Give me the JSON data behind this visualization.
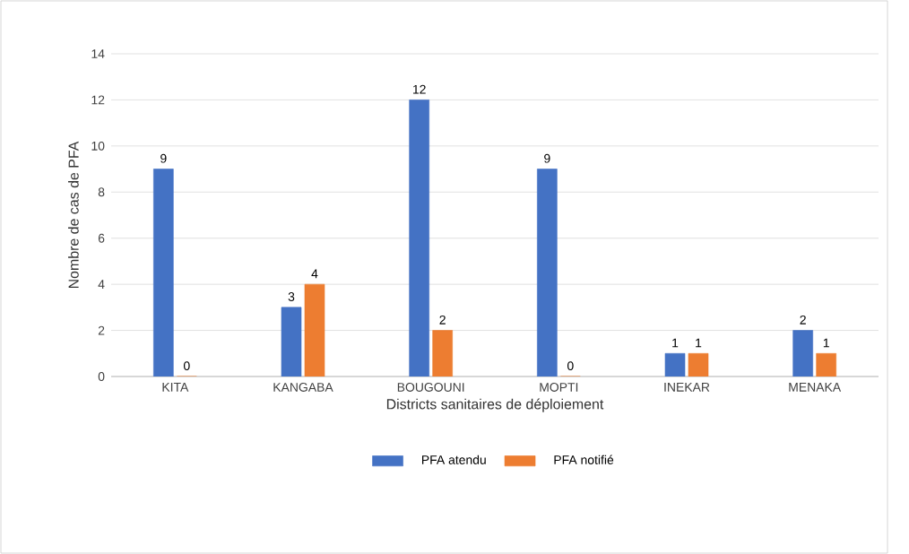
{
  "chart_data": {
    "type": "bar",
    "xlabel": "Districts sanitaires de déploiement",
    "ylabel": "Nombre de cas de PFA",
    "categories": [
      "KITA",
      "KANGABA",
      "BOUGOUNI",
      "MOPTI",
      "INEKAR",
      "MENAKA"
    ],
    "series": [
      {
        "name": "PFA atendu",
        "color": "#4472c4",
        "values": [
          9,
          3,
          12,
          9,
          1,
          2
        ]
      },
      {
        "name": "PFA notifié",
        "color": "#ed7d31",
        "values": [
          0,
          4,
          2,
          0,
          1,
          1
        ]
      }
    ],
    "ylim": [
      0,
      14
    ],
    "yticks": [
      0,
      2,
      4,
      6,
      8,
      10,
      12,
      14
    ],
    "grid": "y",
    "legend": "bottom",
    "data_labels": true
  }
}
